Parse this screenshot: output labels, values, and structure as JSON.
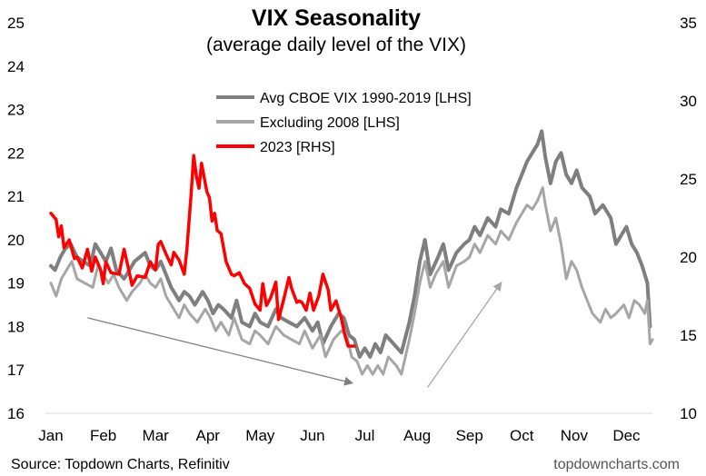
{
  "chart_data": {
    "type": "line",
    "title": "VIX Seasonality",
    "subtitle": "(average daily level of the VIX)",
    "x_labels": [
      "Jan",
      "Feb",
      "Mar",
      "Apr",
      "May",
      "Jun",
      "Jul",
      "Aug",
      "Sep",
      "Oct",
      "Nov",
      "Dec"
    ],
    "y_left": {
      "min": 16,
      "max": 25,
      "ticks": [
        16,
        17,
        18,
        19,
        20,
        21,
        22,
        23,
        24,
        25
      ]
    },
    "y_right": {
      "min": 10,
      "max": 35,
      "ticks": [
        10,
        15,
        20,
        25,
        30,
        35
      ]
    },
    "legend": [
      {
        "label": "Avg CBOE VIX 1990-2019 [LHS]",
        "color": "#7f7f7f"
      },
      {
        "label": "Excluding 2008 [LHS]",
        "color": "#a6a6a6"
      },
      {
        "label": "2023 [RHS]",
        "color": "#ff0000"
      }
    ],
    "series": [
      {
        "name": "Avg CBOE VIX 1990-2019 [LHS]",
        "axis": "left",
        "color": "#7f7f7f",
        "points": [
          [
            0,
            19.4
          ],
          [
            0.08,
            19.3
          ],
          [
            0.18,
            19.6
          ],
          [
            0.28,
            19.8
          ],
          [
            0.38,
            19.9
          ],
          [
            0.5,
            19.6
          ],
          [
            0.62,
            19.5
          ],
          [
            0.75,
            19.4
          ],
          [
            0.85,
            19.9
          ],
          [
            0.95,
            19.7
          ],
          [
            1.05,
            19.5
          ],
          [
            1.15,
            19.8
          ],
          [
            1.25,
            19.3
          ],
          [
            1.4,
            19.1
          ],
          [
            1.5,
            19.3
          ],
          [
            1.6,
            19.5
          ],
          [
            1.7,
            19.6
          ],
          [
            1.8,
            19.7
          ],
          [
            1.9,
            19.4
          ],
          [
            2.0,
            19.3
          ],
          [
            2.1,
            19.5
          ],
          [
            2.2,
            19.2
          ],
          [
            2.3,
            18.9
          ],
          [
            2.45,
            18.6
          ],
          [
            2.55,
            18.8
          ],
          [
            2.65,
            18.7
          ],
          [
            2.75,
            18.5
          ],
          [
            2.9,
            18.8
          ],
          [
            3.0,
            18.6
          ],
          [
            3.1,
            18.3
          ],
          [
            3.2,
            18.5
          ],
          [
            3.3,
            18.4
          ],
          [
            3.45,
            18.2
          ],
          [
            3.55,
            18.6
          ],
          [
            3.65,
            18.1
          ],
          [
            3.8,
            18.0
          ],
          [
            3.9,
            18.3
          ],
          [
            4.0,
            18.1
          ],
          [
            4.15,
            18.0
          ],
          [
            4.3,
            18.4
          ],
          [
            4.4,
            18.2
          ],
          [
            4.55,
            18.1
          ],
          [
            4.7,
            18.0
          ],
          [
            4.85,
            18.2
          ],
          [
            5.0,
            17.9
          ],
          [
            5.1,
            18.1
          ],
          [
            5.2,
            17.6
          ],
          [
            5.35,
            18.0
          ],
          [
            5.5,
            18.3
          ],
          [
            5.6,
            18.2
          ],
          [
            5.7,
            17.8
          ],
          [
            5.8,
            17.7
          ],
          [
            5.9,
            17.3
          ],
          [
            6.0,
            17.5
          ],
          [
            6.1,
            17.3
          ],
          [
            6.2,
            17.6
          ],
          [
            6.3,
            17.4
          ],
          [
            6.4,
            17.8
          ],
          [
            6.55,
            17.6
          ],
          [
            6.7,
            17.4
          ],
          [
            6.85,
            18.1
          ],
          [
            6.95,
            18.7
          ],
          [
            7.05,
            19.5
          ],
          [
            7.15,
            20.0
          ],
          [
            7.25,
            19.2
          ],
          [
            7.4,
            19.6
          ],
          [
            7.5,
            19.9
          ],
          [
            7.6,
            19.3
          ],
          [
            7.75,
            19.7
          ],
          [
            7.9,
            19.9
          ],
          [
            8.0,
            20.0
          ],
          [
            8.1,
            20.3
          ],
          [
            8.2,
            20.1
          ],
          [
            8.35,
            20.5
          ],
          [
            8.5,
            20.3
          ],
          [
            8.6,
            20.7
          ],
          [
            8.75,
            20.6
          ],
          [
            8.9,
            21.2
          ],
          [
            9.0,
            21.5
          ],
          [
            9.1,
            21.8
          ],
          [
            9.2,
            22.0
          ],
          [
            9.3,
            22.2
          ],
          [
            9.38,
            22.5
          ],
          [
            9.45,
            21.9
          ],
          [
            9.55,
            21.3
          ],
          [
            9.65,
            21.8
          ],
          [
            9.75,
            22.0
          ],
          [
            9.85,
            21.5
          ],
          [
            9.95,
            21.3
          ],
          [
            10.05,
            21.6
          ],
          [
            10.15,
            21.2
          ],
          [
            10.3,
            21.0
          ],
          [
            10.4,
            20.6
          ],
          [
            10.55,
            20.8
          ],
          [
            10.7,
            20.5
          ],
          [
            10.8,
            19.9
          ],
          [
            10.9,
            20.1
          ],
          [
            11.0,
            20.3
          ],
          [
            11.1,
            19.9
          ],
          [
            11.2,
            19.7
          ],
          [
            11.3,
            19.4
          ],
          [
            11.4,
            19.0
          ],
          [
            11.45,
            18.0
          ]
        ]
      },
      {
        "name": "Excluding 2008 [LHS]",
        "axis": "left",
        "color": "#a6a6a6",
        "points": [
          [
            0,
            19.0
          ],
          [
            0.1,
            18.7
          ],
          [
            0.2,
            19.1
          ],
          [
            0.3,
            19.3
          ],
          [
            0.4,
            19.5
          ],
          [
            0.5,
            19.1
          ],
          [
            0.65,
            19.0
          ],
          [
            0.8,
            18.9
          ],
          [
            0.9,
            19.4
          ],
          [
            1.0,
            19.2
          ],
          [
            1.1,
            19.0
          ],
          [
            1.2,
            19.2
          ],
          [
            1.3,
            18.9
          ],
          [
            1.45,
            18.6
          ],
          [
            1.55,
            18.8
          ],
          [
            1.7,
            19.0
          ],
          [
            1.8,
            19.2
          ],
          [
            1.9,
            19.0
          ],
          [
            2.0,
            18.9
          ],
          [
            2.1,
            19.1
          ],
          [
            2.2,
            18.7
          ],
          [
            2.35,
            18.4
          ],
          [
            2.45,
            18.2
          ],
          [
            2.55,
            18.5
          ],
          [
            2.65,
            18.3
          ],
          [
            2.8,
            18.1
          ],
          [
            2.95,
            18.4
          ],
          [
            3.05,
            18.2
          ],
          [
            3.15,
            17.9
          ],
          [
            3.25,
            18.1
          ],
          [
            3.4,
            17.8
          ],
          [
            3.5,
            18.2
          ],
          [
            3.65,
            17.7
          ],
          [
            3.8,
            17.6
          ],
          [
            3.9,
            17.9
          ],
          [
            4.0,
            17.8
          ],
          [
            4.15,
            17.6
          ],
          [
            4.3,
            18.0
          ],
          [
            4.45,
            17.8
          ],
          [
            4.6,
            17.7
          ],
          [
            4.75,
            17.6
          ],
          [
            4.85,
            17.9
          ],
          [
            5.0,
            17.5
          ],
          [
            5.15,
            17.8
          ],
          [
            5.25,
            17.3
          ],
          [
            5.4,
            17.7
          ],
          [
            5.55,
            17.9
          ],
          [
            5.65,
            17.8
          ],
          [
            5.75,
            17.3
          ],
          [
            5.85,
            17.2
          ],
          [
            5.95,
            16.9
          ],
          [
            6.05,
            17.1
          ],
          [
            6.15,
            16.9
          ],
          [
            6.25,
            17.1
          ],
          [
            6.35,
            16.9
          ],
          [
            6.45,
            17.3
          ],
          [
            6.6,
            17.1
          ],
          [
            6.7,
            16.9
          ],
          [
            6.85,
            17.7
          ],
          [
            6.95,
            18.3
          ],
          [
            7.05,
            19.0
          ],
          [
            7.15,
            19.5
          ],
          [
            7.25,
            18.9
          ],
          [
            7.35,
            19.2
          ],
          [
            7.5,
            19.5
          ],
          [
            7.6,
            18.9
          ],
          [
            7.75,
            19.4
          ],
          [
            7.9,
            19.5
          ],
          [
            8.0,
            19.6
          ],
          [
            8.1,
            19.9
          ],
          [
            8.2,
            19.7
          ],
          [
            8.35,
            20.1
          ],
          [
            8.5,
            19.9
          ],
          [
            8.6,
            20.2
          ],
          [
            8.75,
            20.0
          ],
          [
            8.9,
            20.4
          ],
          [
            9.0,
            20.6
          ],
          [
            9.1,
            20.8
          ],
          [
            9.2,
            20.7
          ],
          [
            9.3,
            20.9
          ],
          [
            9.4,
            21.2
          ],
          [
            9.45,
            20.8
          ],
          [
            9.55,
            20.2
          ],
          [
            9.65,
            20.5
          ],
          [
            9.75,
            19.9
          ],
          [
            9.85,
            19.1
          ],
          [
            9.95,
            19.5
          ],
          [
            10.05,
            19.3
          ],
          [
            10.15,
            18.9
          ],
          [
            10.25,
            18.6
          ],
          [
            10.35,
            18.3
          ],
          [
            10.5,
            18.1
          ],
          [
            10.6,
            18.4
          ],
          [
            10.7,
            18.2
          ],
          [
            10.8,
            18.3
          ],
          [
            10.95,
            18.5
          ],
          [
            11.05,
            18.2
          ],
          [
            11.15,
            18.6
          ],
          [
            11.25,
            18.5
          ],
          [
            11.35,
            18.3
          ],
          [
            11.4,
            18.6
          ],
          [
            11.45,
            17.6
          ],
          [
            11.5,
            17.7
          ]
        ]
      },
      {
        "name": "2023 [RHS]",
        "axis": "right",
        "color": "#ff0000",
        "points": [
          [
            0,
            22.8
          ],
          [
            0.05,
            22.6
          ],
          [
            0.1,
            22.4
          ],
          [
            0.15,
            21.3
          ],
          [
            0.2,
            22.0
          ],
          [
            0.25,
            20.6
          ],
          [
            0.35,
            21.1
          ],
          [
            0.45,
            19.9
          ],
          [
            0.5,
            20.0
          ],
          [
            0.6,
            19.3
          ],
          [
            0.7,
            20.5
          ],
          [
            0.78,
            19.1
          ],
          [
            0.85,
            20.0
          ],
          [
            0.95,
            19.2
          ],
          [
            1.0,
            18.3
          ],
          [
            1.05,
            19.7
          ],
          [
            1.15,
            19.0
          ],
          [
            1.3,
            18.9
          ],
          [
            1.4,
            20.5
          ],
          [
            1.5,
            19.0
          ],
          [
            1.55,
            18.2
          ],
          [
            1.65,
            18.8
          ],
          [
            1.8,
            18.7
          ],
          [
            1.9,
            19.7
          ],
          [
            2.0,
            19.2
          ],
          [
            2.05,
            20.8
          ],
          [
            2.1,
            21.0
          ],
          [
            2.2,
            20.2
          ],
          [
            2.3,
            19.5
          ],
          [
            2.35,
            20.3
          ],
          [
            2.45,
            19.8
          ],
          [
            2.55,
            18.9
          ],
          [
            2.6,
            20.5
          ],
          [
            2.68,
            24.0
          ],
          [
            2.73,
            26.5
          ],
          [
            2.78,
            25.2
          ],
          [
            2.83,
            24.4
          ],
          [
            2.88,
            26.0
          ],
          [
            2.93,
            25.1
          ],
          [
            2.98,
            24.2
          ],
          [
            3.03,
            23.8
          ],
          [
            3.08,
            22.3
          ],
          [
            3.13,
            22.8
          ],
          [
            3.18,
            21.7
          ],
          [
            3.25,
            21.5
          ],
          [
            3.35,
            19.7
          ],
          [
            3.45,
            18.9
          ],
          [
            3.5,
            18.8
          ],
          [
            3.6,
            19.0
          ],
          [
            3.7,
            18.3
          ],
          [
            3.8,
            18.0
          ],
          [
            3.9,
            17.0
          ],
          [
            4.0,
            16.6
          ],
          [
            4.05,
            18.3
          ],
          [
            4.12,
            16.9
          ],
          [
            4.2,
            17.4
          ],
          [
            4.3,
            18.4
          ],
          [
            4.35,
            16.0
          ],
          [
            4.45,
            17.3
          ],
          [
            4.55,
            18.7
          ],
          [
            4.6,
            18.0
          ],
          [
            4.7,
            17.1
          ],
          [
            4.75,
            17.2
          ],
          [
            4.8,
            17.1
          ],
          [
            4.88,
            16.6
          ],
          [
            4.95,
            17.7
          ],
          [
            5.02,
            16.6
          ],
          [
            5.12,
            17.5
          ],
          [
            5.2,
            18.9
          ],
          [
            5.3,
            17.9
          ],
          [
            5.35,
            16.6
          ],
          [
            5.45,
            17.2
          ],
          [
            5.55,
            16.1
          ],
          [
            5.62,
            15.0
          ],
          [
            5.68,
            14.3
          ],
          [
            5.75,
            14.3
          ],
          [
            5.8,
            14.3
          ]
        ]
      }
    ],
    "annotations": [
      {
        "type": "arrow",
        "from": [
          0.7,
          18.2
        ],
        "to": [
          5.75,
          16.7
        ],
        "color": "#808080"
      },
      {
        "type": "arrow",
        "from": [
          7.2,
          16.6
        ],
        "to": [
          8.6,
          19.0
        ],
        "color": "#a6a6a6"
      }
    ],
    "grid": false,
    "legend_position": "top-center"
  },
  "footer": {
    "source": "Source: Topdown Charts, Refinitiv",
    "brand": "topdowncharts.com"
  }
}
